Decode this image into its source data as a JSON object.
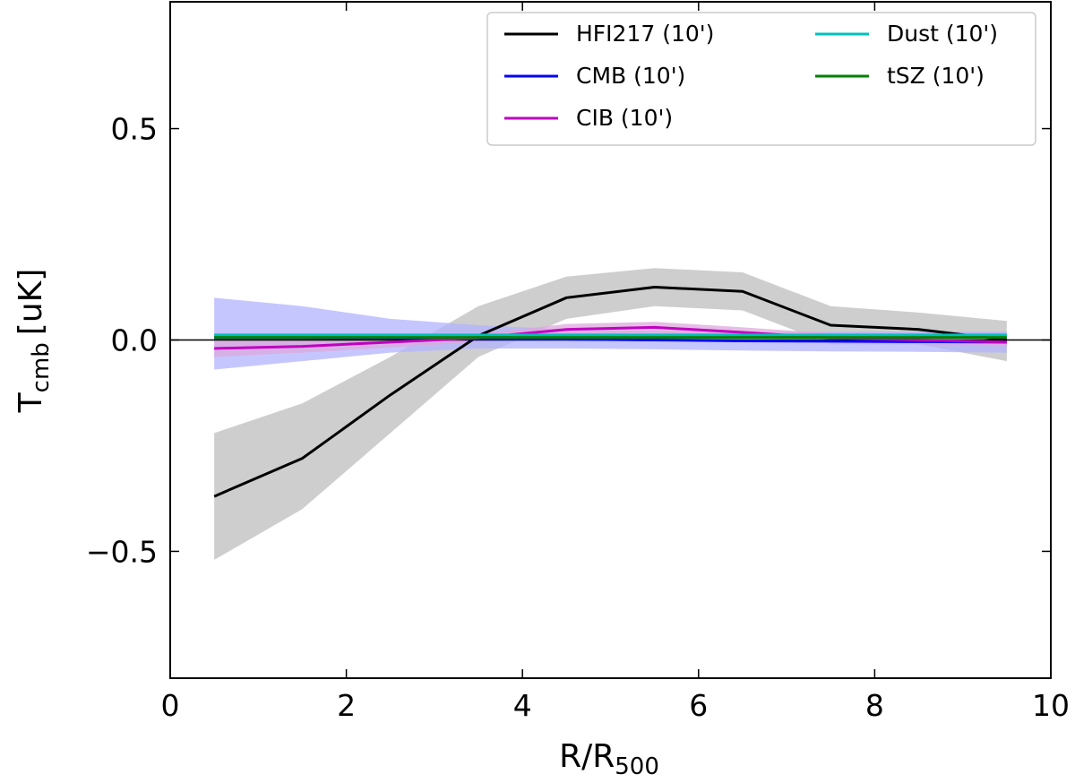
{
  "chart_data": {
    "type": "line",
    "xlabel_main": "R/R",
    "xlabel_sub": "500",
    "ylabel_main": "T",
    "ylabel_sub": "cmb",
    "ylabel_unit": "[uK]",
    "xlim": [
      0,
      10
    ],
    "ylim": [
      -0.8,
      0.8
    ],
    "x_ticks": [
      0,
      2,
      4,
      6,
      8,
      10
    ],
    "x_tick_labels": [
      "0",
      "2",
      "4",
      "6",
      "8",
      "10"
    ],
    "y_ticks": [
      -0.5,
      0.0,
      0.5
    ],
    "y_tick_labels": [
      "−0.5",
      "0.0",
      "0.5"
    ],
    "zero_line": 0.0,
    "x": [
      0.5,
      1.5,
      2.5,
      3.5,
      4.5,
      5.5,
      6.5,
      7.5,
      8.5,
      9.5
    ],
    "series": [
      {
        "name": "HFI217 (10')",
        "color": "#000000",
        "band_color": "#bdbdbd",
        "values": [
          -0.37,
          -0.28,
          -0.13,
          0.01,
          0.1,
          0.125,
          0.115,
          0.035,
          0.025,
          0.0
        ],
        "lower": [
          -0.52,
          -0.4,
          -0.22,
          -0.04,
          0.05,
          0.08,
          0.07,
          -0.01,
          -0.01,
          -0.05
        ],
        "upper": [
          -0.22,
          -0.15,
          -0.04,
          0.08,
          0.15,
          0.17,
          0.16,
          0.08,
          0.065,
          0.045
        ]
      },
      {
        "name": "CMB (10')",
        "color": "#0000ff",
        "band_color": "#b3b3ff",
        "values": [
          0.005,
          0.005,
          0.004,
          0.003,
          0.002,
          0.0,
          -0.002,
          -0.003,
          -0.004,
          -0.005
        ],
        "lower": [
          -0.07,
          -0.05,
          -0.03,
          -0.02,
          -0.02,
          -0.022,
          -0.025,
          -0.027,
          -0.028,
          -0.03
        ],
        "upper": [
          0.1,
          0.08,
          0.05,
          0.035,
          0.025,
          0.022,
          0.02,
          0.02,
          0.02,
          0.02
        ]
      },
      {
        "name": "CIB (10')",
        "color": "#c000c0",
        "band_color": "#dca8dc",
        "values": [
          -0.02,
          -0.015,
          -0.005,
          0.005,
          0.025,
          0.03,
          0.018,
          0.005,
          0.0,
          -0.005
        ],
        "lower": [
          -0.04,
          -0.03,
          -0.018,
          -0.005,
          0.012,
          0.017,
          0.006,
          -0.006,
          -0.01,
          -0.015
        ],
        "upper": [
          0.0,
          0.0,
          0.008,
          0.015,
          0.038,
          0.043,
          0.03,
          0.016,
          0.01,
          0.005
        ]
      },
      {
        "name": "Dust (10')",
        "color": "#00bfbf",
        "values": [
          0.012,
          0.012,
          0.012,
          0.012,
          0.012,
          0.012,
          0.012,
          0.012,
          0.012,
          0.012
        ]
      },
      {
        "name": "tSZ (10')",
        "color": "#008000",
        "values": [
          0.006,
          0.006,
          0.006,
          0.006,
          0.006,
          0.006,
          0.006,
          0.006,
          0.006,
          0.006
        ]
      }
    ],
    "legend": {
      "placement": "top-right",
      "columns": [
        [
          "HFI217 (10')",
          "CMB (10')",
          "CIB (10')"
        ],
        [
          "Dust (10')",
          "tSZ (10')"
        ]
      ]
    }
  }
}
